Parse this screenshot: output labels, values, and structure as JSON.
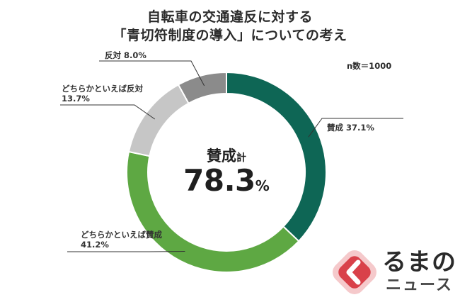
{
  "title_line1": "自転車の交通違反に対する",
  "title_line2": "「青切符制度の導入」についての考え",
  "sample_size": "n数＝1000",
  "center": {
    "label": "賛成",
    "label_suffix": "計",
    "value": "78.3",
    "unit": "%"
  },
  "labels": {
    "agree": "賛成 37.1%",
    "somewhat_agree_1": "どちらかといえば賛成",
    "somewhat_agree_2": "41.2%",
    "somewhat_oppose_1": "どちらかといえば反対",
    "somewhat_oppose_2": "13.7%",
    "oppose": "反対 8.0%"
  },
  "logo": {
    "line1": "るまの",
    "line2": "ニュース",
    "accent": "#d9414a"
  },
  "chart_data": {
    "type": "pie",
    "donut": true,
    "title": "自転車の交通違反に対する「青切符制度の導入」についての考え",
    "categories": [
      "賛成",
      "どちらかといえば賛成",
      "どちらかといえば反対",
      "反対"
    ],
    "values": [
      37.1,
      41.2,
      13.7,
      8.0
    ],
    "colors": [
      "#0e6655",
      "#5ea843",
      "#c6c6c6",
      "#8b8b8b"
    ],
    "start": "12 o'clock, clockwise",
    "n": 1000,
    "center_total": {
      "label": "賛成計",
      "value": 78.3
    }
  }
}
